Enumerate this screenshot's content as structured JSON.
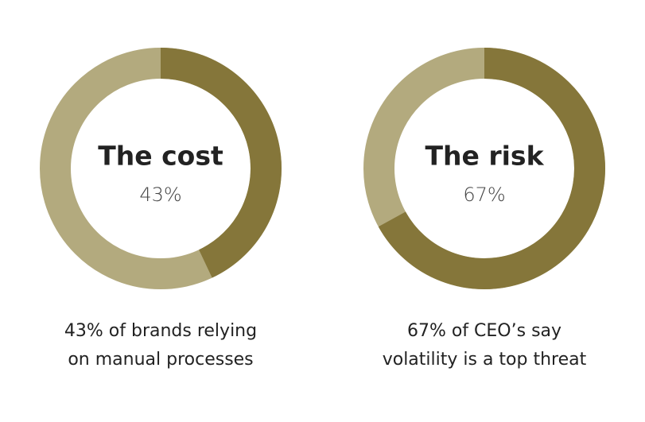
{
  "chart_data": [
    {
      "type": "donut",
      "title": "The cost",
      "values": [
        43
      ],
      "value_labels": [
        "43%"
      ],
      "color": "#85763a",
      "track_color": "#b3aa7e",
      "caption": [
        "43% of brands relying",
        "on manual processes"
      ]
    },
    {
      "type": "donut",
      "title": "The risk",
      "values": [
        67
      ],
      "value_labels": [
        "67%"
      ],
      "color": "#85763a",
      "track_color": "#b3aa7e",
      "caption": [
        "67% of CEO’s say",
        "volatility is a top threat"
      ]
    }
  ]
}
